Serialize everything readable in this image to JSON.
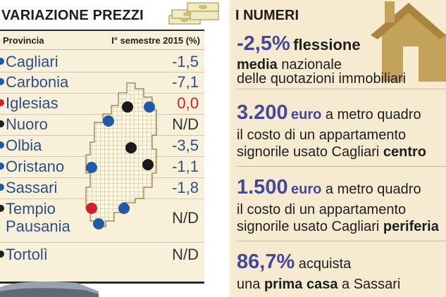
{
  "left": {
    "title": "VARIAZIONE PREZZI",
    "col_province": "Provincia",
    "col_change": "I° semestre 2015 (%)",
    "rows": [
      {
        "name": "Cagliari",
        "value": "-1,5",
        "dot": "#1e5aa8",
        "val_color": "#2d4f88"
      },
      {
        "name": "Carbonia",
        "value": "-7,1",
        "dot": "#1e5aa8",
        "val_color": "#2d4f88"
      },
      {
        "name": "Iglesias",
        "value": "0,0",
        "dot": "#d0202a",
        "val_color": "#d0202a"
      },
      {
        "name": "Nuoro",
        "value": "N/D",
        "dot": "#1e1e1e",
        "val_color": "#333333"
      },
      {
        "name": "Olbia",
        "value": "-3,5",
        "dot": "#1e5aa8",
        "val_color": "#2d4f88"
      },
      {
        "name": "Oristano",
        "value": "-1,1",
        "dot": "#1e5aa8",
        "val_color": "#2d4f88"
      },
      {
        "name": "Sassari",
        "value": "-1,8",
        "dot": "#1e5aa8",
        "val_color": "#2d4f88"
      },
      {
        "name": "Tempio",
        "name2": "Pausania",
        "value": "N/D",
        "dot": "#1e1e1e",
        "val_color": "#333333"
      },
      {
        "name": "Tortolì",
        "value": "N/D",
        "dot": "#1e1e1e",
        "val_color": "#333333"
      }
    ]
  },
  "right": {
    "title": "I NUMERI",
    "facts": [
      {
        "big": "-2,5%",
        "word": "flessione",
        "line1_bold": "media",
        "line1_rest": " nazionale",
        "line2": "delle quotazioni immobiliari"
      },
      {
        "big": "3.200",
        "unit": "euro",
        "after": " a metro quadro",
        "line1": "il costo di un appartamento",
        "line2_pre": "signorile usato Cagliari ",
        "line2_bold": "centro"
      },
      {
        "big": "1.500",
        "unit": "euro",
        "after": " a metro quadro",
        "line1": "il costo di un appartamento",
        "line2_pre": "signorile usato Cagliari ",
        "line2_bold": "periferia"
      },
      {
        "big": "86,7%",
        "after": " acquista",
        "line1_pre": "una ",
        "line1_bold": "prima casa",
        "line1_rest": " a Sassari"
      }
    ]
  }
}
